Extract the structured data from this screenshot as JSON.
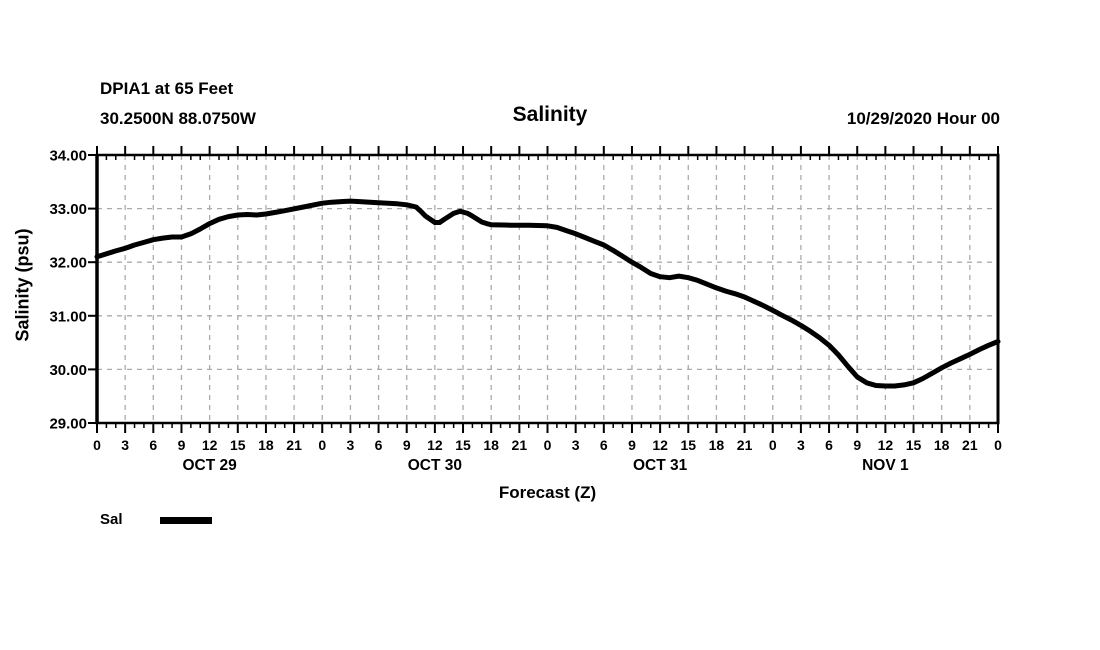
{
  "header": {
    "station": "DPIA1 at 65 Feet",
    "coordinates": "30.2500N 88.0750W",
    "title": "Salinity",
    "datetime": "10/29/2020 Hour 00"
  },
  "axes": {
    "xlabel": "Forecast (Z)",
    "ylabel": "Salinity (psu)",
    "xmin": 0,
    "xmax": 96,
    "ymin": 29,
    "ymax": 34,
    "y_tick_labels": [
      "34.00",
      "33.00",
      "32.00",
      "31.00",
      "30.00",
      "29.00"
    ],
    "y_tick_values": [
      34,
      33,
      32,
      31,
      30,
      29
    ],
    "hour_label_step": 3,
    "hour_labels": [
      "0",
      "3",
      "6",
      "9",
      "12",
      "15",
      "18",
      "21",
      "0",
      "3",
      "6",
      "9",
      "12",
      "15",
      "18",
      "21",
      "0",
      "3",
      "6",
      "9",
      "12",
      "15",
      "18",
      "21",
      "0",
      "3",
      "6",
      "9",
      "12",
      "15",
      "18",
      "21",
      "0"
    ],
    "date_labels": [
      {
        "label": "OCT 29",
        "hour": 12
      },
      {
        "label": "OCT 30",
        "hour": 36
      },
      {
        "label": "OCT 31",
        "hour": 60
      },
      {
        "label": "NOV 1",
        "hour": 84
      }
    ]
  },
  "legend": {
    "label": "Sal"
  },
  "colors": {
    "line": "#000000",
    "frame": "#000000",
    "grid": "#ababab",
    "background": "#ffffff"
  },
  "chart_data": {
    "type": "line",
    "title": "Salinity",
    "xlabel": "Forecast (Z)",
    "ylabel": "Salinity (psu)",
    "x_unit": "forecast hours from 10/29/2020 00Z",
    "xlim": [
      0,
      96
    ],
    "ylim": [
      29,
      34
    ],
    "grid": "dashed, every 3 hours vertical, every 1.00 psu horizontal",
    "legend_position": "below-left",
    "series": [
      {
        "name": "Sal",
        "color": "#000000",
        "points": [
          [
            0,
            32.1
          ],
          [
            2,
            32.21
          ],
          [
            3,
            32.26
          ],
          [
            4,
            32.32
          ],
          [
            5,
            32.37
          ],
          [
            6,
            32.42
          ],
          [
            7,
            32.45
          ],
          [
            8,
            32.47
          ],
          [
            9,
            32.47
          ],
          [
            10,
            32.53
          ],
          [
            11,
            32.62
          ],
          [
            12,
            32.72
          ],
          [
            13,
            32.8
          ],
          [
            14,
            32.85
          ],
          [
            15,
            32.88
          ],
          [
            16,
            32.89
          ],
          [
            17,
            32.88
          ],
          [
            18,
            32.9
          ],
          [
            19,
            32.93
          ],
          [
            20,
            32.96
          ],
          [
            22,
            33.03
          ],
          [
            24,
            33.1
          ],
          [
            25,
            33.12
          ],
          [
            26,
            33.13
          ],
          [
            27,
            33.14
          ],
          [
            28,
            33.13
          ],
          [
            30,
            33.11
          ],
          [
            32,
            33.09
          ],
          [
            33,
            33.07
          ],
          [
            34,
            33.03
          ],
          [
            34.5,
            32.95
          ],
          [
            35,
            32.86
          ],
          [
            36,
            32.74
          ],
          [
            36.5,
            32.74
          ],
          [
            37,
            32.8
          ],
          [
            38,
            32.91
          ],
          [
            38.7,
            32.95
          ],
          [
            39.5,
            32.91
          ],
          [
            40,
            32.86
          ],
          [
            41,
            32.75
          ],
          [
            41.7,
            32.71
          ],
          [
            42,
            32.7
          ],
          [
            44,
            32.69
          ],
          [
            46,
            32.69
          ],
          [
            48,
            32.68
          ],
          [
            49,
            32.65
          ],
          [
            50,
            32.59
          ],
          [
            51,
            32.53
          ],
          [
            52,
            32.46
          ],
          [
            53,
            32.39
          ],
          [
            54,
            32.32
          ],
          [
            55,
            32.22
          ],
          [
            56,
            32.11
          ],
          [
            57,
            32.0
          ],
          [
            58,
            31.9
          ],
          [
            59,
            31.79
          ],
          [
            60,
            31.73
          ],
          [
            61,
            31.71
          ],
          [
            62,
            31.74
          ],
          [
            63,
            31.71
          ],
          [
            64,
            31.66
          ],
          [
            65,
            31.59
          ],
          [
            66,
            31.52
          ],
          [
            67,
            31.46
          ],
          [
            68,
            31.41
          ],
          [
            69,
            31.35
          ],
          [
            70,
            31.27
          ],
          [
            71,
            31.19
          ],
          [
            72,
            31.1
          ],
          [
            73,
            31.01
          ],
          [
            74,
            30.92
          ],
          [
            75,
            30.82
          ],
          [
            76,
            30.71
          ],
          [
            77,
            30.59
          ],
          [
            78,
            30.45
          ],
          [
            79,
            30.27
          ],
          [
            80,
            30.06
          ],
          [
            81,
            29.86
          ],
          [
            82,
            29.75
          ],
          [
            83,
            29.7
          ],
          [
            84,
            29.69
          ],
          [
            85,
            29.69
          ],
          [
            86,
            29.71
          ],
          [
            87,
            29.75
          ],
          [
            88,
            29.83
          ],
          [
            89,
            29.93
          ],
          [
            90,
            30.03
          ],
          [
            91,
            30.12
          ],
          [
            92,
            30.2
          ],
          [
            93,
            30.28
          ],
          [
            94,
            30.37
          ],
          [
            95,
            30.45
          ],
          [
            96,
            30.52
          ]
        ]
      }
    ]
  }
}
